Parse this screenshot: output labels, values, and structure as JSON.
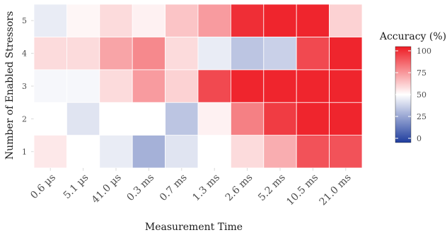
{
  "chart_data": {
    "type": "heatmap",
    "xlabel": "Measurement Time",
    "ylabel": "Number of Enabled Stressors",
    "x_categories": [
      "0.6 µs",
      "5.1 µs",
      "41.0 µs",
      "0.3 ms",
      "0.7 ms",
      "1.3 ms",
      "2.6 ms",
      "5.2 ms",
      "10.5 ms",
      "21.0 ms"
    ],
    "y_categories": [
      "1",
      "2",
      "3",
      "4",
      "5"
    ],
    "values": [
      [
        55,
        50,
        45,
        30,
        43,
        50,
        58,
        68,
        88,
        88
      ],
      [
        50,
        43,
        50,
        50,
        35,
        53,
        78,
        93,
        98,
        98
      ],
      [
        48,
        48,
        58,
        72,
        60,
        90,
        98,
        98,
        98,
        98
      ],
      [
        58,
        58,
        70,
        76,
        58,
        45,
        35,
        38,
        90,
        98
      ],
      [
        45,
        52,
        58,
        53,
        63,
        72,
        96,
        98,
        98,
        60
      ]
    ],
    "colorbar": {
      "title": "Accuracy (%)",
      "ticks": [
        "0",
        "25",
        "50",
        "75",
        "100"
      ],
      "range": [
        0,
        100
      ],
      "low_color": "#1f3d9e",
      "mid_color": "#ffffff",
      "high_color": "#ee1c24"
    },
    "grid": true,
    "legend_position": "right"
  }
}
